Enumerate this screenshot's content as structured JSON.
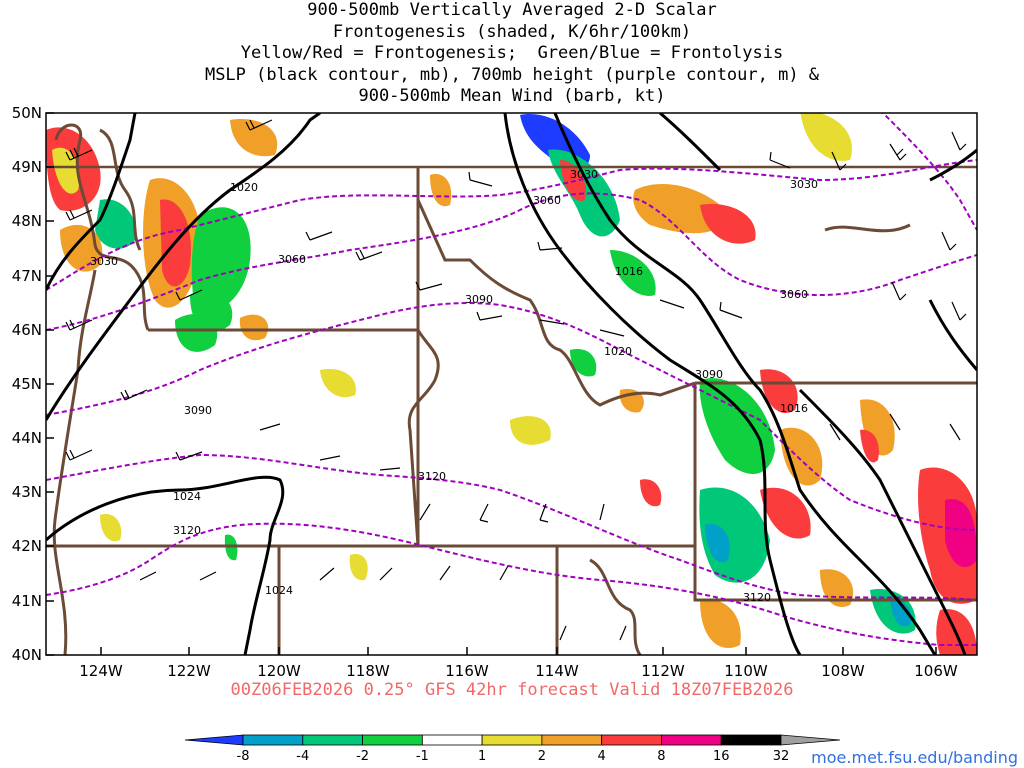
{
  "title_lines": [
    "900-500mb Vertically Averaged 2-D Scalar",
    "Frontogenesis (shaded, K/6hr/100km)",
    "Yellow/Red = Frontogenesis;  Green/Blue = Frontolysis",
    "MSLP (black contour, mb), 700mb height (purple contour, m) &",
    "900-500mb Mean Wind (barb, kt)"
  ],
  "subtitle": "00Z06FEB2026 0.25° GFS 42hr forecast Valid 18Z07FEB2026",
  "credit": "moe.met.fsu.edu/banding",
  "lat_labels": [
    "50N",
    "49N",
    "48N",
    "47N",
    "46N",
    "45N",
    "44N",
    "43N",
    "42N",
    "41N",
    "40N"
  ],
  "lon_labels": [
    "124W",
    "122W",
    "120W",
    "118W",
    "116W",
    "114W",
    "112W",
    "110W",
    "108W",
    "106W"
  ],
  "colorbar": {
    "labels": [
      "-8",
      "-4",
      "-2",
      "-1",
      "1",
      "2",
      "4",
      "8",
      "16",
      "32"
    ],
    "colors": [
      "#1e3cff",
      "#00a0c8",
      "#00c878",
      "#10d040",
      "#ffffff",
      "#e6dc32",
      "#f0a028",
      "#fa3c3c",
      "#f00082",
      "#000000",
      "#a0a0a0"
    ]
  },
  "mslp_labels": [
    "1020",
    "1016",
    "1020",
    "1016",
    "1024",
    "1024"
  ],
  "height_labels": [
    "3030",
    "3060",
    "3030",
    "3060",
    "3030",
    "3060",
    "3090",
    "3090",
    "3120",
    "3120",
    "3120",
    "3090"
  ],
  "colors": {
    "mslp": "#000000",
    "height": "#a000c0",
    "border": "#6b4a36",
    "subtitle": "#f06868",
    "credit": "#3070e0"
  }
}
